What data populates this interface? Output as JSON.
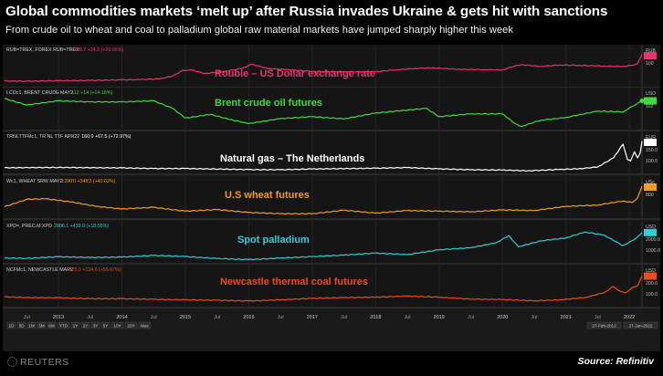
{
  "title": "Global commodities markets ‘melt up’ after Russia invades Ukraine & gets hit with sanctions",
  "subtitle": "From crude oil to wheat and coal to palladium global raw material markets have jumped sharply higher this week",
  "source": "Source: Refinitiv",
  "branding": "REUTERS",
  "date_range": [
    "27-Feb-2012",
    "27-Jan-2022"
  ],
  "range_buttons": [
    "1D",
    "5D",
    "1M",
    "3M",
    "6M",
    "YTD",
    "1Y",
    "2Y",
    "3Y",
    "5Y",
    "10Y",
    "20Y",
    "Max"
  ],
  "range_buttons_alt": [
    "1D",
    "5D",
    "1D",
    "1M",
    "3M",
    "6M",
    "YTD",
    "1Y",
    "2Y",
    "3Y",
    "5Y",
    "10Y",
    "20Y",
    "Max"
  ],
  "x_axis": {
    "years": [
      "2013",
      "2014",
      "2015",
      "2016",
      "2017",
      "2018",
      "2019",
      "2020",
      "2021",
      "2022"
    ],
    "minor": "Jul",
    "start": 2012.15,
    "end": 2022.2
  },
  "chart_data": [
    {
      "type": "line",
      "id": "rouble",
      "label": "Rouble – US Dollar exchange rate",
      "ric": "RUB=TREX, FOREX RUB=TREX",
      "quote": "105.7 +24.2 (+29.66%)",
      "color": "#e8336f",
      "unit": "RUB",
      "ylim": [
        20,
        110
      ],
      "y_ticks": [
        "100"
      ],
      "x": [
        2012.15,
        2012.5,
        2013.0,
        2013.5,
        2014.0,
        2014.3,
        2014.6,
        2014.8,
        2014.95,
        2015.1,
        2015.3,
        2015.6,
        2015.9,
        2016.05,
        2016.3,
        2016.6,
        2017.0,
        2017.5,
        2018.0,
        2018.3,
        2018.6,
        2018.9,
        2019.3,
        2019.7,
        2020.0,
        2020.2,
        2020.3,
        2020.6,
        2020.9,
        2021.2,
        2021.6,
        2021.9,
        2022.05,
        2022.13,
        2022.2
      ],
      "values": [
        31,
        30.5,
        31.5,
        32.5,
        34,
        35,
        37,
        45,
        60,
        62,
        52,
        57,
        67,
        78,
        66,
        63,
        58,
        57,
        57,
        62,
        66,
        68,
        64,
        63,
        62,
        74,
        77,
        72,
        76,
        75,
        73,
        72,
        75,
        80,
        106
      ]
    },
    {
      "type": "line",
      "id": "brent",
      "label": "Brent crude oil futures",
      "ric": "LCOc1, BRENT CRUDE MAY2",
      "quote": "112 +14 (+14.16%)",
      "color": "#3ddc3d",
      "unit": "USD",
      "ylim": [
        15,
        130
      ],
      "y_ticks": [
        "112"
      ],
      "x": [
        2012.15,
        2012.5,
        2013.0,
        2013.5,
        2014.0,
        2014.5,
        2014.8,
        2015.0,
        2015.4,
        2015.7,
        2016.0,
        2016.5,
        2017.0,
        2017.5,
        2018.0,
        2018.8,
        2019.0,
        2019.5,
        2020.0,
        2020.2,
        2020.3,
        2020.6,
        2021.0,
        2021.5,
        2021.9,
        2022.05,
        2022.2
      ],
      "values": [
        120,
        97,
        112,
        108,
        108,
        112,
        85,
        50,
        63,
        45,
        30,
        48,
        55,
        47,
        68,
        85,
        55,
        65,
        65,
        30,
        20,
        42,
        52,
        75,
        72,
        92,
        112
      ]
    },
    {
      "type": "line",
      "id": "natgas",
      "label": "Natural gas – The Netherlands",
      "ric": "TRNLTTFMc1, TR NL TTF APR22",
      "quote": "160.0 +67.5 (+72.97%)",
      "color": "#ffffff",
      "unit": "EUR",
      "ylim": [
        0,
        210
      ],
      "y_ticks": [
        "150.0",
        "100.0"
      ],
      "x": [
        2012.15,
        2013.0,
        2014.0,
        2014.5,
        2015.0,
        2016.0,
        2016.5,
        2017.0,
        2018.0,
        2018.5,
        2019.0,
        2019.5,
        2020.0,
        2020.4,
        2020.9,
        2021.2,
        2021.5,
        2021.75,
        2021.9,
        2021.97,
        2022.02,
        2022.08,
        2022.13,
        2022.17,
        2022.2
      ],
      "values": [
        25,
        27,
        24,
        20,
        20,
        13,
        12,
        17,
        22,
        26,
        18,
        12,
        10,
        5,
        14,
        18,
        30,
        90,
        180,
        80,
        70,
        130,
        90,
        120,
        200
      ]
    },
    {
      "type": "line",
      "id": "wheat",
      "label": "U.S wheat futures",
      "ric": "Wc1, WHEAT SRW MAY2",
      "quote": "1290'0 +348'2 (+40.62%)",
      "color": "#f39c1f",
      "unit": "USc",
      "ylim": [
        350,
        1350
      ],
      "y_ticks": [
        "800"
      ],
      "x": [
        2012.15,
        2012.5,
        2012.8,
        2013.2,
        2013.6,
        2014.0,
        2014.5,
        2015.0,
        2015.5,
        2016.0,
        2016.5,
        2017.0,
        2017.5,
        2018.0,
        2018.5,
        2019.0,
        2019.5,
        2020.0,
        2020.5,
        2021.0,
        2021.5,
        2021.9,
        2022.05,
        2022.13,
        2022.2
      ],
      "values": [
        650,
        880,
        900,
        800,
        660,
        580,
        630,
        510,
        560,
        470,
        430,
        430,
        540,
        450,
        530,
        510,
        490,
        550,
        530,
        660,
        700,
        830,
        780,
        930,
        1290
      ]
    },
    {
      "type": "line",
      "id": "palladium",
      "label": "Spot palladium",
      "ric": "XPD=, PREC.M:XPD",
      "quote": "2806.1 +439.0 (+18.55%)",
      "color": "#2fcfd6",
      "unit": "USD",
      "ylim": [
        400,
        3100
      ],
      "y_ticks": [
        "2000.0",
        "1000.0"
      ],
      "x": [
        2012.15,
        2012.5,
        2013.0,
        2013.5,
        2014.0,
        2014.5,
        2015.0,
        2015.5,
        2016.0,
        2016.5,
        2017.0,
        2017.5,
        2018.0,
        2018.5,
        2019.0,
        2019.5,
        2019.9,
        2020.1,
        2020.25,
        2020.6,
        2021.0,
        2021.3,
        2021.6,
        2021.9,
        2022.0,
        2022.1,
        2022.2
      ],
      "values": [
        650,
        620,
        760,
        700,
        730,
        870,
        780,
        610,
        520,
        650,
        770,
        900,
        1070,
        940,
        1350,
        1520,
        1940,
        2550,
        1600,
        2100,
        2350,
        2850,
        2600,
        1700,
        2000,
        2300,
        2806
      ]
    },
    {
      "type": "line",
      "id": "coal",
      "label": "Newcastle thermal coal futures",
      "ric": "NCFMc1, NEWCASTLE MAR2",
      "quote": "378.0 +134.6 (+55.67%)",
      "color": "#ef4b16",
      "unit": "USD",
      "ylim": [
        0,
        420
      ],
      "y_ticks": [
        "200.0",
        "100.0"
      ],
      "x": [
        2012.15,
        2012.5,
        2013.0,
        2013.5,
        2014.0,
        2014.5,
        2015.0,
        2015.5,
        2016.0,
        2016.5,
        2017.0,
        2017.5,
        2018.0,
        2018.5,
        2019.0,
        2019.5,
        2020.0,
        2020.5,
        2020.9,
        2021.3,
        2021.6,
        2021.75,
        2021.85,
        2021.95,
        2022.05,
        2022.13,
        2022.2
      ],
      "values": [
        105,
        95,
        92,
        80,
        80,
        72,
        65,
        60,
        50,
        65,
        85,
        95,
        100,
        115,
        100,
        75,
        70,
        52,
        65,
        95,
        160,
        240,
        180,
        160,
        230,
        250,
        378
      ]
    }
  ]
}
